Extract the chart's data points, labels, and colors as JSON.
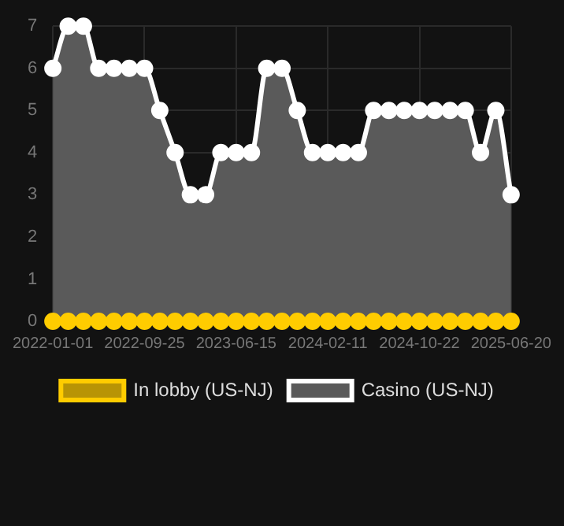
{
  "chart_data": {
    "type": "line",
    "categories": [
      "2022-01-01",
      null,
      null,
      null,
      null,
      null,
      "2022-09-25",
      null,
      null,
      null,
      null,
      null,
      "2023-06-15",
      null,
      null,
      null,
      null,
      null,
      "2024-02-11",
      null,
      null,
      null,
      null,
      null,
      "2024-10-22",
      null,
      null,
      null,
      null,
      null,
      "2025-06-20"
    ],
    "series": [
      {
        "name": "In lobby (US-NJ)",
        "color": "#ffcc00",
        "values": [
          0,
          0,
          0,
          0,
          0,
          0,
          0,
          0,
          0,
          0,
          0,
          0,
          0,
          0,
          0,
          0,
          0,
          0,
          0,
          0,
          0,
          0,
          0,
          0,
          0,
          0,
          0,
          0,
          0,
          0,
          0
        ]
      },
      {
        "name": "Casino (US-NJ)",
        "type": "area",
        "color": "#ffffff",
        "values": [
          6,
          7,
          7,
          6,
          6,
          6,
          6,
          5,
          4,
          3,
          3,
          4,
          4,
          4,
          6,
          6,
          5,
          4,
          4,
          4,
          4,
          5,
          5,
          5,
          5,
          5,
          5,
          5,
          4,
          5,
          3
        ]
      }
    ],
    "ylim": [
      0,
      7
    ],
    "yticks": [
      0,
      1,
      2,
      3,
      4,
      5,
      6,
      7
    ],
    "grid": true,
    "legend": "bottom",
    "marker": "circle"
  }
}
